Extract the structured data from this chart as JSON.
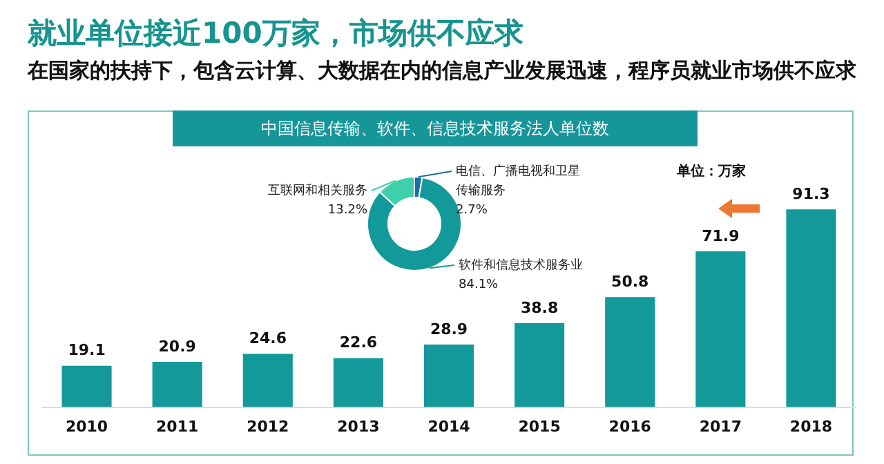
{
  "chart_data": [
    {
      "type": "bar",
      "title": "就业单位接近100万家，市场供不应求",
      "subtitle": "在国家的扶持下，包含云计算、大数据在内的信息产业发展迅速，程序员就业市场供不应求",
      "annotations": [
        "中国信息传输、软件、信息技术服务法人单位数",
        "单位：万家"
      ],
      "categories": [
        "2010",
        "2011",
        "2012",
        "2013",
        "2014",
        "2015",
        "2016",
        "2017",
        "2018"
      ],
      "values": [
        19.1,
        20.9,
        24.6,
        22.6,
        28.9,
        38.8,
        50.8,
        71.9,
        91.3
      ],
      "color": "#14999a",
      "data_labels": true
    },
    {
      "type": "donut",
      "categories": [
        "电信、广播电视和卫星传输服务",
        "软件和信息技术服务业",
        "互联网和相关服务"
      ],
      "values": [
        2.7,
        84.1,
        13.2
      ],
      "colors": [
        "#1a6fa8",
        "#14999a",
        "#3dd0aa"
      ],
      "value_labels": [
        "2.7%",
        "84.1%",
        "13.2%"
      ]
    }
  ]
}
